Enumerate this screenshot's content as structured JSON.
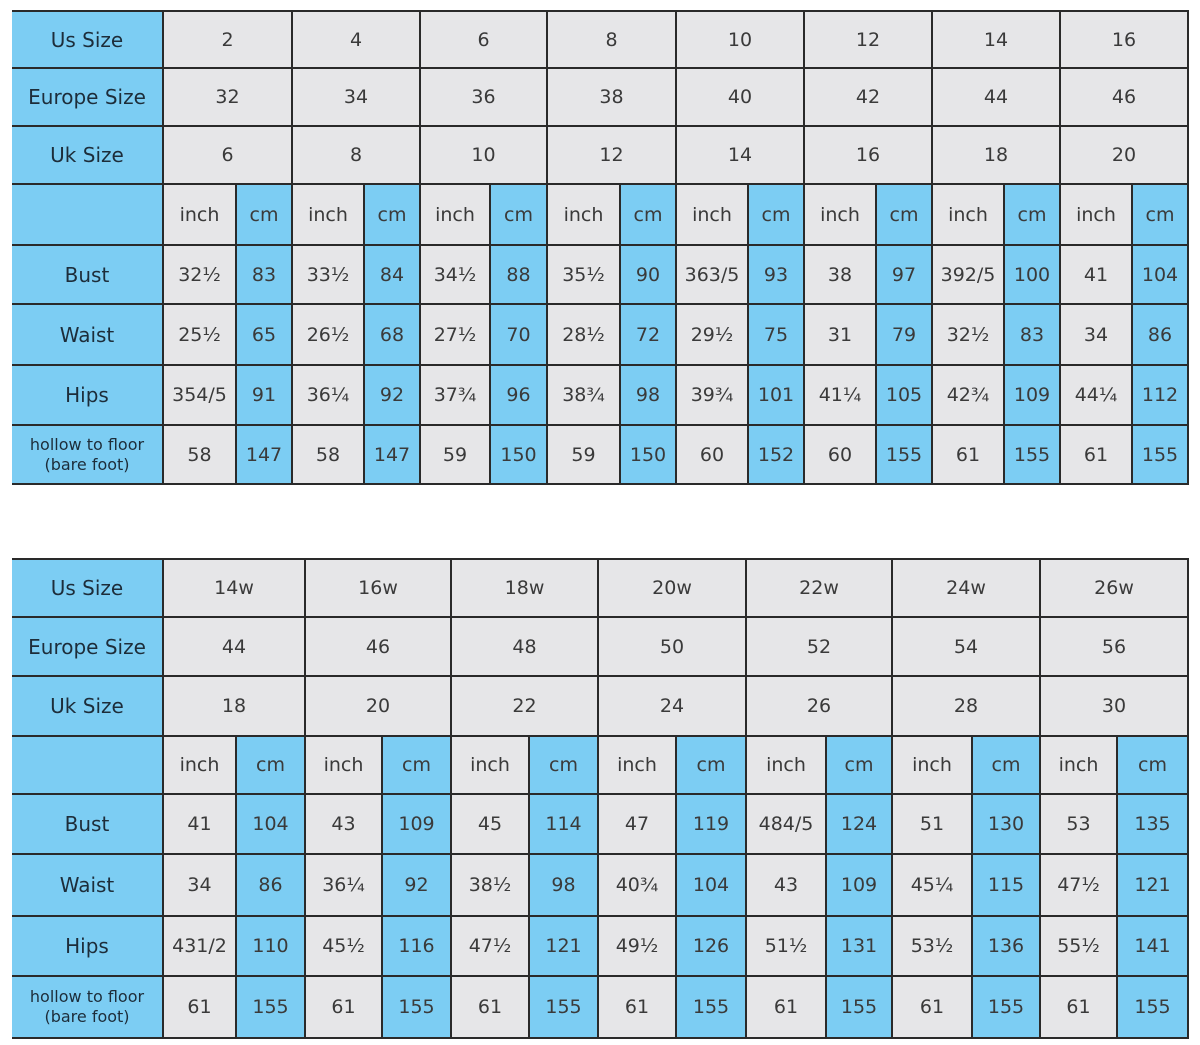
{
  "colors": {
    "accent_blue": "#7ccdf3",
    "cell_gray": "#e6e6e8"
  },
  "row_labels": {
    "us": "Us Size",
    "europe": "Europe Size",
    "uk": "Uk Size",
    "bust": "Bust",
    "waist": "Waist",
    "hips": "Hips",
    "hollow": [
      "hollow to floor",
      "(bare foot)"
    ]
  },
  "units": {
    "inch": "inch",
    "cm": "cm"
  },
  "tables": [
    {
      "us": [
        "2",
        "4",
        "6",
        "8",
        "10",
        "12",
        "14",
        "16"
      ],
      "europe": [
        "32",
        "34",
        "36",
        "38",
        "40",
        "42",
        "44",
        "46"
      ],
      "uk": [
        "6",
        "8",
        "10",
        "12",
        "14",
        "16",
        "18",
        "20"
      ],
      "bust": [
        [
          "32½",
          "83"
        ],
        [
          "33½",
          "84"
        ],
        [
          "34½",
          "88"
        ],
        [
          "35½",
          "90"
        ],
        [
          "363/5",
          "93"
        ],
        [
          "38",
          "97"
        ],
        [
          "392/5",
          "100"
        ],
        [
          "41",
          "104"
        ]
      ],
      "waist": [
        [
          "25½",
          "65"
        ],
        [
          "26½",
          "68"
        ],
        [
          "27½",
          "70"
        ],
        [
          "28½",
          "72"
        ],
        [
          "29½",
          "75"
        ],
        [
          "31",
          "79"
        ],
        [
          "32½",
          "83"
        ],
        [
          "34",
          "86"
        ]
      ],
      "hips": [
        [
          "354/5",
          "91"
        ],
        [
          "36¼",
          "92"
        ],
        [
          "37¾",
          "96"
        ],
        [
          "38¾",
          "98"
        ],
        [
          "39¾",
          "101"
        ],
        [
          "41¼",
          "105"
        ],
        [
          "42¾",
          "109"
        ],
        [
          "44¼",
          "112"
        ]
      ],
      "hollow": [
        [
          "58",
          "147"
        ],
        [
          "58",
          "147"
        ],
        [
          "59",
          "150"
        ],
        [
          "59",
          "150"
        ],
        [
          "60",
          "152"
        ],
        [
          "60",
          "155"
        ],
        [
          "61",
          "155"
        ],
        [
          "61",
          "155"
        ]
      ]
    },
    {
      "us": [
        "14w",
        "16w",
        "18w",
        "20w",
        "22w",
        "24w",
        "26w"
      ],
      "europe": [
        "44",
        "46",
        "48",
        "50",
        "52",
        "54",
        "56"
      ],
      "uk": [
        "18",
        "20",
        "22",
        "24",
        "26",
        "28",
        "30"
      ],
      "bust": [
        [
          "41",
          "104"
        ],
        [
          "43",
          "109"
        ],
        [
          "45",
          "114"
        ],
        [
          "47",
          "119"
        ],
        [
          "484/5",
          "124"
        ],
        [
          "51",
          "130"
        ],
        [
          "53",
          "135"
        ]
      ],
      "waist": [
        [
          "34",
          "86"
        ],
        [
          "36¼",
          "92"
        ],
        [
          "38½",
          "98"
        ],
        [
          "40¾",
          "104"
        ],
        [
          "43",
          "109"
        ],
        [
          "45¼",
          "115"
        ],
        [
          "47½",
          "121"
        ]
      ],
      "hips": [
        [
          "431/2",
          "110"
        ],
        [
          "45½",
          "116"
        ],
        [
          "47½",
          "121"
        ],
        [
          "49½",
          "126"
        ],
        [
          "51½",
          "131"
        ],
        [
          "53½",
          "136"
        ],
        [
          "55½",
          "141"
        ]
      ],
      "hollow": [
        [
          "61",
          "155"
        ],
        [
          "61",
          "155"
        ],
        [
          "61",
          "155"
        ],
        [
          "61",
          "155"
        ],
        [
          "61",
          "155"
        ],
        [
          "61",
          "155"
        ],
        [
          "61",
          "155"
        ]
      ]
    }
  ]
}
